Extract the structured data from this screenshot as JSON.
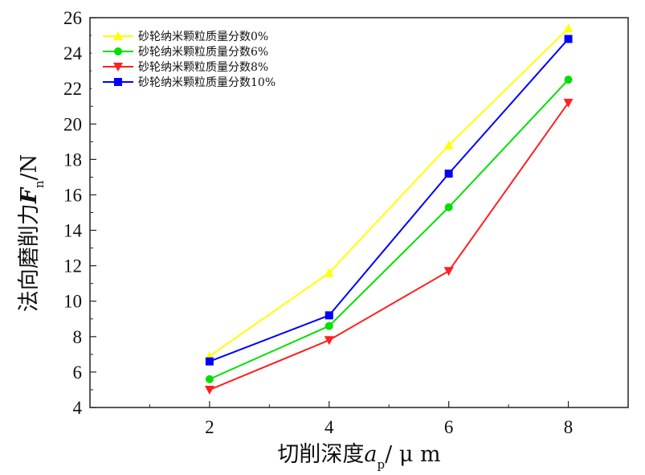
{
  "chart_data": {
    "type": "line",
    "title": "",
    "xlabel": {
      "main": "切削深度",
      "var": "a",
      "sub": "p",
      "unit": "/ μ m"
    },
    "ylabel": {
      "main": "法向磨削力",
      "var": "F",
      "sub": "n",
      "unit": "/N"
    },
    "x": [
      2,
      4,
      6,
      8
    ],
    "xlim": [
      0,
      9
    ],
    "ylim": [
      4,
      26
    ],
    "xticks": [
      2,
      4,
      6,
      8
    ],
    "yticks": [
      4,
      6,
      8,
      10,
      12,
      14,
      16,
      18,
      20,
      22,
      24,
      26
    ],
    "grid": false,
    "legend_position": "top-left",
    "series": [
      {
        "name": "砂轮纳米颗粒质量分数0%",
        "color": "#ffff00",
        "marker": "triangle-up",
        "values": [
          6.9,
          11.6,
          18.8,
          25.4
        ]
      },
      {
        "name": "砂轮纳米颗粒质量分数6%",
        "color": "#00e000",
        "marker": "circle",
        "values": [
          5.6,
          8.6,
          15.3,
          22.5
        ]
      },
      {
        "name": "砂轮纳米颗粒质量分数8%",
        "color": "#ff2020",
        "marker": "triangle-down",
        "values": [
          5.0,
          7.8,
          11.7,
          21.2
        ]
      },
      {
        "name": "砂轮纳米颗粒质量分数10%",
        "color": "#0000ff",
        "marker": "square",
        "values": [
          6.6,
          9.2,
          17.2,
          24.8
        ]
      }
    ]
  }
}
